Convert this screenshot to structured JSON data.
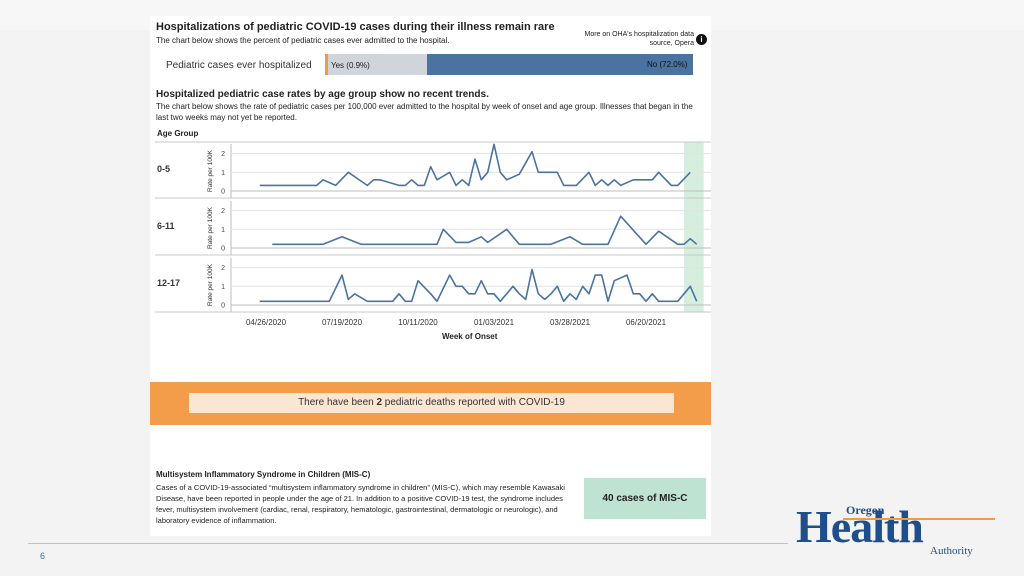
{
  "header": {
    "title": "Hospitalizations of pediatric COVID-19 cases during their illness remain rare",
    "subtitle": "The chart below shows the percent of pediatric cases ever admitted to the hospital.",
    "source_note": "More on OHA's hospitalization data source, Opera",
    "info_glyph": "i"
  },
  "hospitalized_bar": {
    "label": "Pediatric cases ever hospitalized",
    "yes_text": "Yes (0.9%)",
    "no_text": "No (72.0%)",
    "yes_color": "#cfd5db",
    "no_color": "#4a73a1",
    "accent": "#f39a3d"
  },
  "section2": {
    "title": "Hospitalized pediatric case rates by age group show no recent trends.",
    "description": "The chart below shows the rate of pediatric cases per 100,000 ever admitted to the hospital by week of onset and age group. Illnesses that began in the last two weeks may not yet be reported.",
    "age_group_title": "Age Group",
    "y_axis_label": "Rate per 100K",
    "x_axis_title": "Week of Onset"
  },
  "chart_data": {
    "type": "line",
    "x_range": [
      "2020-03-29",
      "2021-08-15"
    ],
    "x_tick_labels": [
      "04/26/2020",
      "07/19/2020",
      "10/11/2020",
      "01/03/2021",
      "03/28/2021",
      "06/20/2021"
    ],
    "ylim": [
      0,
      2.5
    ],
    "y_ticks": [
      0,
      1,
      2
    ],
    "line_color": "#4a73a1",
    "highlight": {
      "from": "2021-08-01",
      "to": "2021-08-15",
      "color": "#d6eedd"
    },
    "panels": [
      {
        "name": "0-5",
        "points": [
          [
            "2020-04-19",
            0.3
          ],
          [
            "2020-05-31",
            0.3
          ],
          [
            "2020-06-21",
            0.3
          ],
          [
            "2020-06-28",
            0.6
          ],
          [
            "2020-07-12",
            0.3
          ],
          [
            "2020-07-26",
            1.0
          ],
          [
            "2020-08-16",
            0.3
          ],
          [
            "2020-08-23",
            0.6
          ],
          [
            "2020-08-30",
            0.6
          ],
          [
            "2020-09-20",
            0.3
          ],
          [
            "2020-09-27",
            0.3
          ],
          [
            "2020-10-04",
            0.6
          ],
          [
            "2020-10-11",
            0.3
          ],
          [
            "2020-10-18",
            0.3
          ],
          [
            "2020-10-25",
            1.3
          ],
          [
            "2020-11-01",
            0.6
          ],
          [
            "2020-11-15",
            1.0
          ],
          [
            "2020-11-22",
            0.3
          ],
          [
            "2020-11-29",
            0.6
          ],
          [
            "2020-12-06",
            0.3
          ],
          [
            "2020-12-13",
            1.7
          ],
          [
            "2020-12-20",
            0.6
          ],
          [
            "2020-12-27",
            1.0
          ],
          [
            "2021-01-03",
            2.5
          ],
          [
            "2021-01-10",
            1.0
          ],
          [
            "2021-01-17",
            0.6
          ],
          [
            "2021-01-31",
            0.9
          ],
          [
            "2021-02-14",
            2.1
          ],
          [
            "2021-02-21",
            1.0
          ],
          [
            "2021-03-14",
            1.0
          ],
          [
            "2021-03-21",
            0.3
          ],
          [
            "2021-04-04",
            0.3
          ],
          [
            "2021-04-18",
            1.0
          ],
          [
            "2021-04-25",
            0.3
          ],
          [
            "2021-05-02",
            0.6
          ],
          [
            "2021-05-09",
            0.3
          ],
          [
            "2021-05-16",
            0.6
          ],
          [
            "2021-05-23",
            0.3
          ],
          [
            "2021-06-06",
            0.6
          ],
          [
            "2021-06-27",
            0.6
          ],
          [
            "2021-07-04",
            1.0
          ],
          [
            "2021-07-18",
            0.3
          ],
          [
            "2021-07-25",
            0.3
          ],
          [
            "2021-08-08",
            1.0
          ]
        ]
      },
      {
        "name": "6-11",
        "points": [
          [
            "2020-05-03",
            0.2
          ],
          [
            "2020-06-28",
            0.2
          ],
          [
            "2020-07-19",
            0.6
          ],
          [
            "2020-08-09",
            0.2
          ],
          [
            "2020-10-18",
            0.2
          ],
          [
            "2020-11-01",
            0.2
          ],
          [
            "2020-11-08",
            1.0
          ],
          [
            "2020-11-22",
            0.3
          ],
          [
            "2020-12-06",
            0.3
          ],
          [
            "2020-12-20",
            0.6
          ],
          [
            "2020-12-27",
            0.3
          ],
          [
            "2021-01-17",
            1.0
          ],
          [
            "2021-01-31",
            0.2
          ],
          [
            "2021-03-07",
            0.2
          ],
          [
            "2021-03-28",
            0.6
          ],
          [
            "2021-04-11",
            0.2
          ],
          [
            "2021-05-09",
            0.2
          ],
          [
            "2021-05-23",
            1.7
          ],
          [
            "2021-06-20",
            0.2
          ],
          [
            "2021-07-04",
            0.9
          ],
          [
            "2021-07-25",
            0.2
          ],
          [
            "2021-08-01",
            0.2
          ],
          [
            "2021-08-08",
            0.5
          ],
          [
            "2021-08-15",
            0.2
          ]
        ]
      },
      {
        "name": "12-17",
        "points": [
          [
            "2020-04-19",
            0.2
          ],
          [
            "2020-07-05",
            0.2
          ],
          [
            "2020-07-19",
            1.6
          ],
          [
            "2020-07-26",
            0.3
          ],
          [
            "2020-08-02",
            0.6
          ],
          [
            "2020-08-16",
            0.2
          ],
          [
            "2020-09-13",
            0.2
          ],
          [
            "2020-09-20",
            0.6
          ],
          [
            "2020-09-27",
            0.2
          ],
          [
            "2020-10-04",
            0.2
          ],
          [
            "2020-10-11",
            1.3
          ],
          [
            "2020-10-25",
            0.6
          ],
          [
            "2020-11-01",
            0.2
          ],
          [
            "2020-11-15",
            1.6
          ],
          [
            "2020-11-22",
            1.0
          ],
          [
            "2020-11-29",
            1.0
          ],
          [
            "2020-12-06",
            0.6
          ],
          [
            "2020-12-13",
            0.6
          ],
          [
            "2020-12-20",
            1.3
          ],
          [
            "2020-12-27",
            0.6
          ],
          [
            "2021-01-03",
            0.6
          ],
          [
            "2021-01-10",
            0.2
          ],
          [
            "2021-01-24",
            1.0
          ],
          [
            "2021-01-31",
            0.6
          ],
          [
            "2021-02-07",
            0.3
          ],
          [
            "2021-02-14",
            1.9
          ],
          [
            "2021-02-21",
            0.6
          ],
          [
            "2021-02-28",
            0.3
          ],
          [
            "2021-03-07",
            0.6
          ],
          [
            "2021-03-14",
            1.0
          ],
          [
            "2021-03-21",
            0.2
          ],
          [
            "2021-03-28",
            0.6
          ],
          [
            "2021-04-04",
            0.3
          ],
          [
            "2021-04-11",
            1.0
          ],
          [
            "2021-04-18",
            0.6
          ],
          [
            "2021-04-25",
            1.6
          ],
          [
            "2021-05-02",
            1.6
          ],
          [
            "2021-05-09",
            0.2
          ],
          [
            "2021-05-16",
            1.3
          ],
          [
            "2021-05-30",
            1.6
          ],
          [
            "2021-06-06",
            0.6
          ],
          [
            "2021-06-13",
            0.6
          ],
          [
            "2021-06-20",
            0.2
          ],
          [
            "2021-06-27",
            0.6
          ],
          [
            "2021-07-04",
            0.2
          ],
          [
            "2021-07-25",
            0.2
          ],
          [
            "2021-08-08",
            1.0
          ],
          [
            "2021-08-15",
            0.2
          ]
        ]
      }
    ]
  },
  "deaths": {
    "text_before": "There have been ",
    "count": "2",
    "text_after": " pediatric deaths reported with COVID-19",
    "band_color": "#f39c4a"
  },
  "misc": {
    "title": "Multisystem Inflammatory Syndrome in Children (MIS-C)",
    "body": "Cases of a COVID-19-associated “multisystem inflammatory syndrome in children” (MIS-C), which may resemble Kawasaki Disease, have been reported in people under the age of 21. In addition to a positive COVID-19 test, the syndrome includes fever, multisystem involvement (cardiac, renal, respiratory, hematologic, gastrointestinal, dermatologic or neurologic), and laboratory evidence of inflammation.",
    "count_box": "40 cases of MIS-C",
    "box_color": "#bfe3d2"
  },
  "footer": {
    "page_number": "6",
    "logo_oregon": "Oregon",
    "logo_health": "Health",
    "logo_authority": "Authority"
  }
}
